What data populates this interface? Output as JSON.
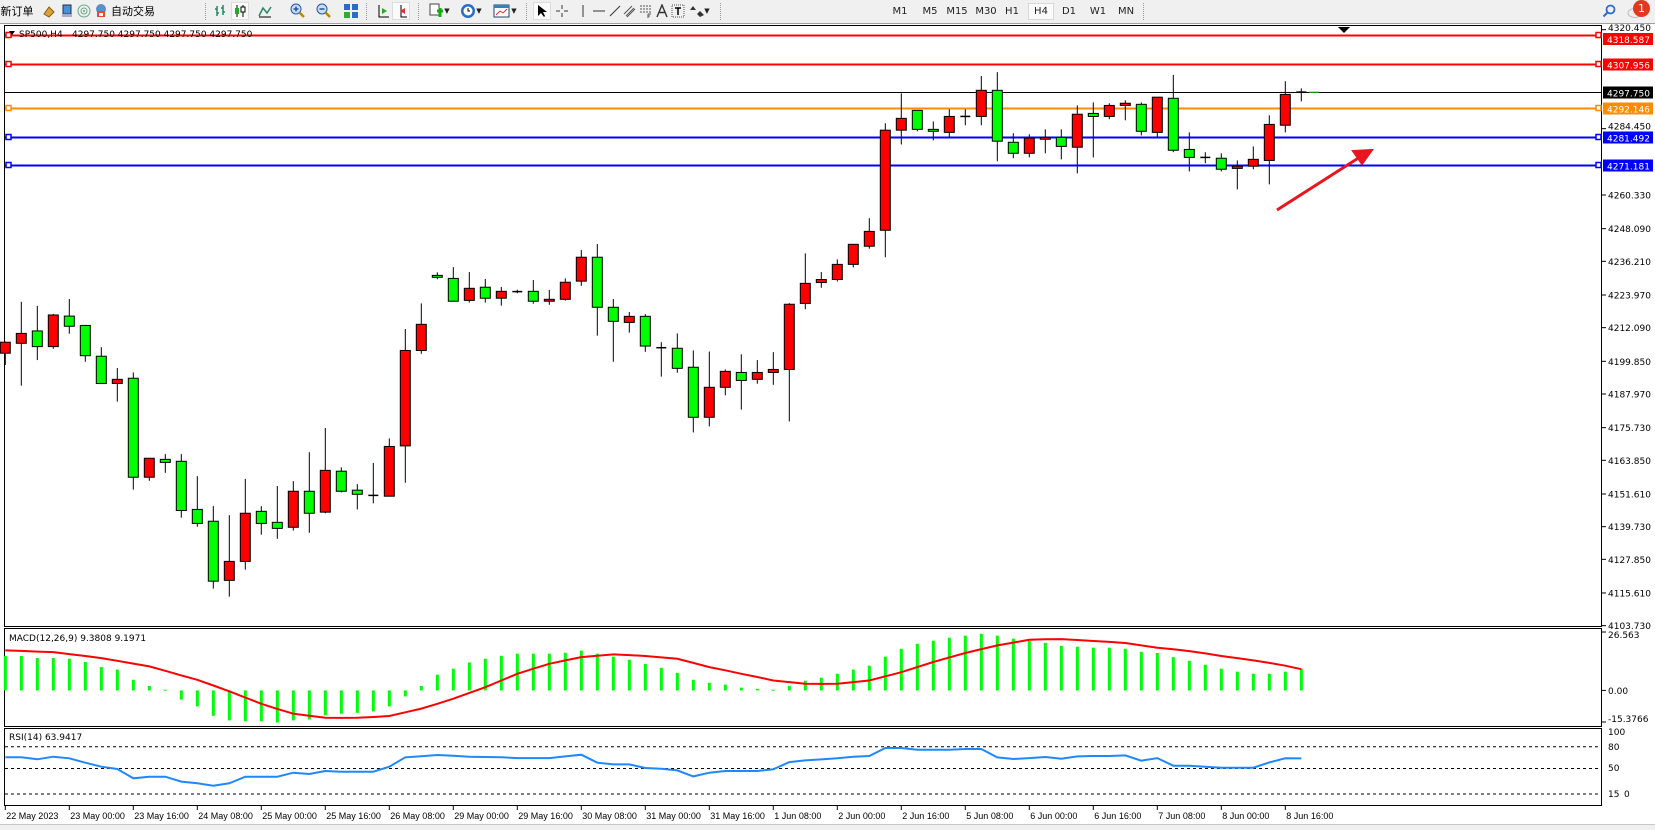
{
  "toolbar": {
    "new_order_label": "新订单",
    "auto_trading_label": "自动交易",
    "timeframes": [
      "M1",
      "M5",
      "M15",
      "M30",
      "H1",
      "H4",
      "D1",
      "W1",
      "MN"
    ],
    "active_timeframe": "H4",
    "notification_count": "1",
    "icons": [
      "new-order-icon",
      "gold-bars-icon",
      "market-watch-icon",
      "signal-icon",
      "auto-trading-icon",
      "bar-chart-icon",
      "candlestick-icon",
      "line-chart-icon",
      "zoom-in-icon",
      "zoom-out-icon",
      "tile-windows-icon",
      "chart-shift-icon",
      "autoscroll-icon",
      "indicators-icon",
      "periods-icon",
      "templates-icon",
      "cursor-icon",
      "crosshair-icon",
      "vertical-line-icon",
      "horizontal-line-icon",
      "trendline-icon",
      "equidistant-channel-icon",
      "fibonacci-icon",
      "text-icon",
      "text-label-icon",
      "arrows-icon",
      "search-icon",
      "notification-icon"
    ]
  },
  "header": {
    "symbol": "SP500,H4",
    "ohlc_text": "4297.750 4297.750 4297.750 4297.750"
  },
  "colors": {
    "bull_candle": "#ff0000",
    "bear_candle": "#00ff00",
    "macd_histogram": "#00ff00",
    "macd_signal": "#ff0000",
    "rsi_line": "#1e88ff",
    "arrow": "#e8141e"
  },
  "chart_data": [
    {
      "type": "candlestick",
      "symbol": "SP500",
      "timeframe": "H4",
      "ylim": [
        4103.73,
        4320.45
      ],
      "y_ticks": [
        "4320.450",
        "4284.450",
        "4260.330",
        "4248.090",
        "4236.210",
        "4223.970",
        "4212.090",
        "4199.850",
        "4187.970",
        "4175.730",
        "4163.850",
        "4151.610",
        "4139.730",
        "4127.850",
        "4115.610",
        "4103.730"
      ],
      "x_ticks": [
        {
          "index": 0,
          "label": "22 May 2023"
        },
        {
          "index": 4,
          "label": "23 May 00:00"
        },
        {
          "index": 8,
          "label": "23 May 16:00"
        },
        {
          "index": 12,
          "label": "24 May 08:00"
        },
        {
          "index": 16,
          "label": "25 May 00:00"
        },
        {
          "index": 20,
          "label": "25 May 16:00"
        },
        {
          "index": 24,
          "label": "26 May 08:00"
        },
        {
          "index": 28,
          "label": "29 May 00:00"
        },
        {
          "index": 32,
          "label": "29 May 16:00"
        },
        {
          "index": 36,
          "label": "30 May 08:00"
        },
        {
          "index": 40,
          "label": "31 May 00:00"
        },
        {
          "index": 44,
          "label": "31 May 16:00"
        },
        {
          "index": 48,
          "label": "1 Jun 08:00"
        },
        {
          "index": 52,
          "label": "2 Jun 00:00"
        },
        {
          "index": 56,
          "label": "2 Jun 16:00"
        },
        {
          "index": 60,
          "label": "5 Jun 08:00"
        },
        {
          "index": 64,
          "label": "6 Jun 00:00"
        },
        {
          "index": 68,
          "label": "6 Jun 16:00"
        },
        {
          "index": 72,
          "label": "7 Jun 08:00"
        },
        {
          "index": 76,
          "label": "8 Jun 00:00"
        },
        {
          "index": 80,
          "label": "8 Jun 16:00"
        }
      ],
      "ohlc": [
        [
          4202.8,
          4207.0,
          4198.5,
          4206.8
        ],
        [
          4206.4,
          4221.5,
          4191.0,
          4210.0
        ],
        [
          4210.9,
          4220.0,
          4200.3,
          4205.2
        ],
        [
          4205.2,
          4217.1,
          4204.4,
          4216.7
        ],
        [
          4216.3,
          4222.5,
          4209.9,
          4212.6
        ],
        [
          4212.9,
          4212.9,
          4199.7,
          4201.9
        ],
        [
          4201.7,
          4205.0,
          4191.8,
          4191.8
        ],
        [
          4191.8,
          4197.4,
          4185.2,
          4193.3
        ],
        [
          4193.7,
          4195.8,
          4153.2,
          4157.7
        ],
        [
          4157.7,
          4164.6,
          4156.4,
          4164.6
        ],
        [
          4164.2,
          4166.1,
          4159.3,
          4163.1
        ],
        [
          4163.5,
          4166.1,
          4143.0,
          4145.6
        ],
        [
          4146.0,
          4158.1,
          4139.7,
          4140.9
        ],
        [
          4141.7,
          4147.2,
          4117.2,
          4119.9
        ],
        [
          4120.2,
          4143.9,
          4114.3,
          4127.1
        ],
        [
          4127.1,
          4157.1,
          4124.1,
          4144.6
        ],
        [
          4145.3,
          4147.2,
          4136.8,
          4140.9
        ],
        [
          4141.3,
          4154.5,
          4135.3,
          4139.1
        ],
        [
          4139.5,
          4156.3,
          4138.3,
          4152.6
        ],
        [
          4152.6,
          4166.8,
          4137.5,
          4144.6
        ],
        [
          4145.0,
          4175.6,
          4144.6,
          4160.2
        ],
        [
          4159.9,
          4161.3,
          4152.2,
          4152.6
        ],
        [
          4153.0,
          4155.2,
          4146.0,
          4151.5
        ],
        [
          4151.1,
          4162.9,
          4148.2,
          4151.1
        ],
        [
          4150.8,
          4171.8,
          4150.8,
          4168.9
        ],
        [
          4169.1,
          4211.6,
          4155.7,
          4203.8
        ],
        [
          4203.8,
          4220.9,
          4202.6,
          4213.3
        ],
        [
          4231.1,
          4232.2,
          4229.7,
          4230.4
        ],
        [
          4230.0,
          4234.1,
          4221.7,
          4221.7
        ],
        [
          4222.0,
          4232.3,
          4221.2,
          4226.4
        ],
        [
          4226.8,
          4229.8,
          4221.2,
          4222.8
        ],
        [
          4222.8,
          4226.9,
          4220.1,
          4225.3
        ],
        [
          4225.2,
          4225.9,
          4224.6,
          4225.2
        ],
        [
          4225.3,
          4229.4,
          4220.8,
          4221.7
        ],
        [
          4221.7,
          4225.8,
          4220.4,
          4222.4
        ],
        [
          4222.4,
          4230.0,
          4221.9,
          4228.6
        ],
        [
          4229.0,
          4240.3,
          4227.3,
          4237.7
        ],
        [
          4237.7,
          4242.5,
          4209.2,
          4219.5
        ],
        [
          4219.5,
          4222.5,
          4199.7,
          4214.4
        ],
        [
          4214.0,
          4217.8,
          4210.3,
          4216.2
        ],
        [
          4216.2,
          4217.0,
          4203.3,
          4205.4
        ],
        [
          4204.8,
          4206.8,
          4194.3,
          4204.8
        ],
        [
          4204.6,
          4210.0,
          4195.7,
          4197.3
        ],
        [
          4197.7,
          4203.8,
          4174.0,
          4179.5
        ],
        [
          4179.5,
          4203.4,
          4176.2,
          4190.4
        ],
        [
          4190.4,
          4196.9,
          4187.5,
          4196.2
        ],
        [
          4195.8,
          4202.4,
          4182.3,
          4192.9
        ],
        [
          4193.3,
          4200.3,
          4191.7,
          4195.8
        ],
        [
          4195.8,
          4203.2,
          4191.3,
          4196.9
        ],
        [
          4196.9,
          4221.0,
          4178.0,
          4220.6
        ],
        [
          4220.9,
          4239.1,
          4218.8,
          4228.2
        ],
        [
          4228.5,
          4232.3,
          4226.6,
          4229.6
        ],
        [
          4229.6,
          4236.9,
          4228.9,
          4235.1
        ],
        [
          4235.1,
          4242.4,
          4234.0,
          4242.4
        ],
        [
          4241.7,
          4251.9,
          4240.8,
          4247.1
        ],
        [
          4247.5,
          4286.4,
          4237.7,
          4283.9
        ],
        [
          4283.9,
          4297.3,
          4278.7,
          4288.2
        ],
        [
          4291.1,
          4291.1,
          4283.5,
          4284.2
        ],
        [
          4284.2,
          4287.1,
          4280.2,
          4283.5
        ],
        [
          4283.1,
          4291.5,
          4280.9,
          4288.9
        ],
        [
          4288.9,
          4291.5,
          4285.7,
          4288.9
        ],
        [
          4288.9,
          4303.6,
          4285.7,
          4298.4
        ],
        [
          4298.4,
          4305.0,
          4272.6,
          4279.9
        ],
        [
          4279.5,
          4282.8,
          4273.7,
          4275.5
        ],
        [
          4275.5,
          4282.4,
          4274.0,
          4281.0
        ],
        [
          4280.6,
          4284.2,
          4275.5,
          4281.3
        ],
        [
          4281.3,
          4284.2,
          4273.3,
          4278.0
        ],
        [
          4277.7,
          4292.9,
          4268.2,
          4289.7
        ],
        [
          4290.0,
          4294.0,
          4274.0,
          4288.9
        ],
        [
          4288.9,
          4293.7,
          4287.9,
          4292.9
        ],
        [
          4292.9,
          4294.8,
          4287.5,
          4293.7
        ],
        [
          4293.3,
          4294.0,
          4282.0,
          4283.5
        ],
        [
          4283.1,
          4295.9,
          4280.9,
          4295.9
        ],
        [
          4295.5,
          4304.0,
          4275.9,
          4276.6
        ],
        [
          4276.9,
          4283.1,
          4268.9,
          4274.0
        ],
        [
          4274.0,
          4275.9,
          4271.9,
          4274.0
        ],
        [
          4273.7,
          4275.5,
          4268.9,
          4269.7
        ],
        [
          4270.0,
          4272.9,
          4262.4,
          4270.8
        ],
        [
          4270.8,
          4278.0,
          4269.7,
          4273.3
        ],
        [
          4272.9,
          4289.3,
          4264.2,
          4286.0
        ],
        [
          4285.7,
          4301.7,
          4283.1,
          4296.9
        ],
        [
          4297.75,
          4299.1,
          4294.4,
          4297.75
        ]
      ],
      "horizontal_lines": [
        {
          "price": "4318.587",
          "color": "#ff0000"
        },
        {
          "price": "4307.956",
          "color": "#ff0000"
        },
        {
          "price": "4297.750",
          "color": "#000000",
          "bid": true
        },
        {
          "price": "4292.146",
          "color": "#ff8c00"
        },
        {
          "price": "4281.492",
          "color": "#0000ff"
        },
        {
          "price": "4271.181",
          "color": "#0000ff"
        }
      ],
      "annotation": {
        "type": "arrow",
        "direction": "up-right",
        "color": "#e8141e"
      }
    },
    {
      "type": "bar+line",
      "title": "MACD(12,26,9) 9.3808 9.1971",
      "ylim": [
        -15.3766,
        26.563
      ],
      "y_ticks": [
        "26.563",
        "0.00",
        "-15.3766"
      ],
      "histogram": [
        14.9,
        14.9,
        14.0,
        14.0,
        13.7,
        12.3,
        10.1,
        9.0,
        4.6,
        1.9,
        0.3,
        -4.0,
        -6.9,
        -11.0,
        -13.0,
        -13.4,
        -13.4,
        -13.9,
        -13.0,
        -12.6,
        -10.8,
        -10.1,
        -9.7,
        -9.1,
        -6.9,
        -2.6,
        1.9,
        6.8,
        9.4,
        12.1,
        13.7,
        15.0,
        15.9,
        15.9,
        15.9,
        16.3,
        17.2,
        15.9,
        14.6,
        13.3,
        11.5,
        9.8,
        7.6,
        4.6,
        3.3,
        2.5,
        1.2,
        0.7,
        0.3,
        2.0,
        4.2,
        5.5,
        7.2,
        9.0,
        10.7,
        14.6,
        18.0,
        20.2,
        21.5,
        22.8,
        23.7,
        24.5,
        23.7,
        22.4,
        21.5,
        20.6,
        19.3,
        18.9,
        18.5,
        18.5,
        18.0,
        16.7,
        16.2,
        14.4,
        12.8,
        11.1,
        9.4,
        8.1,
        7.2,
        7.2,
        8.1,
        9.3808
      ],
      "signal": [
        17.3,
        17.1,
        16.8,
        16.6,
        15.7,
        14.9,
        14.0,
        12.8,
        11.6,
        10.4,
        8.5,
        6.5,
        4.6,
        2.1,
        -0.4,
        -3.1,
        -5.8,
        -8.0,
        -10.1,
        -11.0,
        -11.8,
        -11.9,
        -11.8,
        -11.5,
        -11.1,
        -9.5,
        -7.9,
        -5.8,
        -3.6,
        -1.1,
        1.4,
        4.3,
        7.2,
        9.4,
        11.5,
        13.0,
        14.4,
        15.0,
        15.6,
        15.3,
        14.9,
        14.3,
        13.7,
        11.9,
        10.1,
        8.7,
        7.2,
        5.8,
        4.3,
        3.6,
        2.9,
        2.8,
        2.9,
        3.6,
        4.3,
        6.1,
        7.9,
        10.1,
        12.3,
        14.3,
        16.2,
        17.9,
        19.5,
        20.7,
        21.9,
        22.1,
        22.2,
        21.8,
        21.4,
        21.0,
        20.5,
        19.5,
        18.5,
        17.8,
        17.0,
        16.0,
        14.9,
        14.0,
        13.0,
        11.9,
        10.7,
        9.1971
      ]
    },
    {
      "type": "line",
      "title": "RSI(14) 63.9417",
      "ylim": [
        0,
        100
      ],
      "y_ticks": [
        "100",
        "80",
        "50",
        "15",
        "0"
      ],
      "levels": [
        80,
        50,
        15
      ],
      "values": [
        65.4,
        65.4,
        62.7,
        66.3,
        64.0,
        58.0,
        52.5,
        49.4,
        36.6,
        38.8,
        38.8,
        32.0,
        29.7,
        26.4,
        29.7,
        38.8,
        38.8,
        38.8,
        44.3,
        42.5,
        46.6,
        45.7,
        45.7,
        45.7,
        52.5,
        65.4,
        67.0,
        68.6,
        67.5,
        66.3,
        65.8,
        65.5,
        64.4,
        64.4,
        64.4,
        66.7,
        69.0,
        58.0,
        55.7,
        55.7,
        50.7,
        49.8,
        47.5,
        39.2,
        44.3,
        46.6,
        46.6,
        46.6,
        48.9,
        58.9,
        61.2,
        62.6,
        64.0,
        66.3,
        67.2,
        78.2,
        78.2,
        75.9,
        75.9,
        75.9,
        76.8,
        76.8,
        65.3,
        63.1,
        64.4,
        65.8,
        63.5,
        66.7,
        67.2,
        67.2,
        68.1,
        60.8,
        64.4,
        53.9,
        53.9,
        52.5,
        51.2,
        51.2,
        51.2,
        58.5,
        64.0,
        63.9417
      ]
    }
  ]
}
